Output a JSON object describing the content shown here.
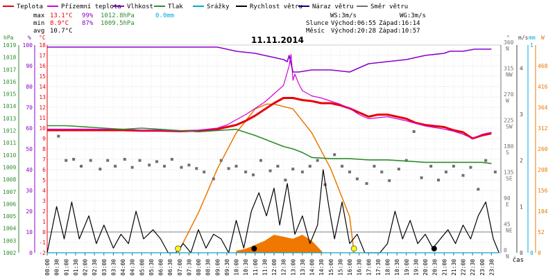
{
  "legend": [
    {
      "label": "Teplota",
      "color": "#e8000b"
    },
    {
      "label": "Přízemní teplota",
      "color": "#d400d4"
    },
    {
      "label": "Vlhkost",
      "color": "#8a00c8"
    },
    {
      "label": "Tlak",
      "color": "#2e8b2e"
    },
    {
      "label": "Srážky",
      "color": "#00a8d8"
    },
    {
      "label": "Rychlost větru",
      "color": "#000000"
    },
    {
      "label": "Náraz větru",
      "color": "#000080"
    },
    {
      "label": "Směr větru",
      "color": "#707070"
    }
  ],
  "stats": {
    "max": {
      "label": "max",
      "temp": "13.1°C",
      "hum": "99%",
      "press": "1012.8hPa",
      "rain": "0.0mm"
    },
    "min": {
      "label": "min",
      "temp": "8.9°C",
      "hum": "87%",
      "press": "1009.5hPa"
    },
    "avg": {
      "label": "avg",
      "temp": "10.7°C"
    }
  },
  "wind_info": {
    "ws": "WS:3m/s",
    "wg": "WG:3m/s"
  },
  "sun_info": {
    "label": "Slunce",
    "rise": "Východ:06:55",
    "set": "Západ:16:14"
  },
  "moon_info": {
    "label": "Měsíc",
    "rise": "Východ:20:28",
    "set": "Západ:10:57"
  },
  "chart_data": {
    "type": "line",
    "title": "11.11.2014",
    "x_axis_label": "čas",
    "x_ticks": [
      "00:00",
      "00:30",
      "01:00",
      "01:30",
      "02:00",
      "02:30",
      "03:00",
      "03:30",
      "04:00",
      "04:30",
      "05:00",
      "05:30",
      "06:00",
      "06:30",
      "07:00",
      "07:30",
      "08:00",
      "08:30",
      "09:00",
      "09:30",
      "10:00",
      "10:30",
      "11:00",
      "11:30",
      "12:00",
      "12:30",
      "13:00",
      "13:30",
      "14:00",
      "14:30",
      "15:00",
      "15:30",
      "16:00",
      "16:30",
      "17:00",
      "17:30",
      "18:00",
      "18:30",
      "19:00",
      "19:30",
      "20:00",
      "20:30",
      "21:00",
      "21:30",
      "22:00",
      "22:30",
      "23:00",
      "23:30"
    ],
    "axes": {
      "hPa": {
        "unit": "hPa",
        "ticks": [
          1002,
          1003,
          1004,
          1005,
          1006,
          1007,
          1008,
          1009,
          1010,
          1011,
          1012,
          1013,
          1014,
          1015,
          1016,
          1017,
          1018,
          1019
        ],
        "color": "#2e8b2e"
      },
      "percent": {
        "unit": "%",
        "ticks": [
          0,
          10,
          20,
          30,
          40,
          50,
          60,
          70,
          80,
          90,
          100
        ],
        "color": "#8a00c8"
      },
      "celsius": {
        "unit": "°C",
        "ticks": [
          -2,
          -1,
          0,
          1,
          2,
          3,
          4,
          5,
          6,
          7,
          8,
          9,
          10,
          11,
          12,
          13,
          14,
          15,
          16,
          17,
          18
        ],
        "color": "#e8000b"
      },
      "direction": {
        "unit": "°",
        "ticks": [
          {
            "deg": "0",
            "dir": "N"
          },
          {
            "deg": "45",
            "dir": "NE"
          },
          {
            "deg": "90",
            "dir": "E"
          },
          {
            "deg": "135",
            "dir": "SE"
          },
          {
            "deg": "180",
            "dir": "S"
          },
          {
            "deg": "225",
            "dir": "SW"
          },
          {
            "deg": "270",
            "dir": "W"
          },
          {
            "deg": "315",
            "dir": "NW"
          },
          {
            "deg": "360",
            "dir": "N"
          }
        ],
        "color": "#707070"
      },
      "ms": {
        "unit": "m/s",
        "ticks": [
          0,
          1,
          2,
          3,
          4
        ],
        "color": "#404040"
      },
      "mm": {
        "unit": "mm",
        "ticks": [
          0,
          1
        ],
        "color": "#00a8d8"
      },
      "wm2": {
        "unit": "W",
        "ticks": [
          0,
          52,
          104,
          156,
          208,
          260,
          312,
          364,
          416,
          468
        ],
        "color": "#e87800"
      }
    },
    "series": [
      {
        "name": "Teplota",
        "unit": "°C",
        "color": "#e8000b",
        "t": [
          0,
          0.5,
          1,
          2,
          3,
          4,
          5,
          6,
          7,
          8,
          9,
          9.5,
          10,
          10.5,
          11,
          11.5,
          12,
          12.5,
          13,
          13.5,
          14,
          14.5,
          15,
          15.5,
          16,
          16.5,
          17,
          17.5,
          18,
          18.5,
          19,
          19.5,
          20,
          20.5,
          21,
          21.5,
          22,
          22.5,
          23,
          23.5
        ],
        "v": [
          9.8,
          9.8,
          9.8,
          9.8,
          9.8,
          9.8,
          9.75,
          9.75,
          9.7,
          9.75,
          9.9,
          10.1,
          10.3,
          10.7,
          11.2,
          11.8,
          12.4,
          12.9,
          12.9,
          12.7,
          12.6,
          12.4,
          12.4,
          12.2,
          11.9,
          11.5,
          11.1,
          11.3,
          11.3,
          11.1,
          10.9,
          10.5,
          10.3,
          10.2,
          10.1,
          9.8,
          9.6,
          9.0,
          9.3,
          9.5
        ]
      },
      {
        "name": "Přízemní teplota",
        "unit": "°C",
        "color": "#d400d4",
        "t": [
          0,
          1,
          2,
          3,
          4,
          5,
          6,
          7,
          8,
          9,
          9.5,
          10,
          10.5,
          11,
          11.5,
          12,
          12.5,
          12.8,
          12.9,
          13.0,
          13.1,
          13.3,
          13.5,
          14,
          14.5,
          15,
          15.5,
          16,
          16.5,
          17,
          17.5,
          18,
          18.5,
          19,
          20,
          21,
          21.5,
          22,
          22.5,
          23,
          23.5
        ],
        "v": [
          9.9,
          9.9,
          9.9,
          9.9,
          9.9,
          9.8,
          9.8,
          9.7,
          9.8,
          10.0,
          10.3,
          10.8,
          11.3,
          11.9,
          12.5,
          13.3,
          14.1,
          16.0,
          17.1,
          14.6,
          15.2,
          14.3,
          13.6,
          13.1,
          12.9,
          12.6,
          12.3,
          11.9,
          11.3,
          10.9,
          11.0,
          11.1,
          10.9,
          10.7,
          10.2,
          9.9,
          9.7,
          9.4,
          9.0,
          9.4,
          9.6
        ]
      },
      {
        "name": "Vlhkost",
        "unit": "%",
        "color": "#8a00c8",
        "t": [
          0,
          9,
          10,
          11,
          11.5,
          12,
          12.5,
          12.7,
          12.8,
          12.9,
          13.0,
          13.3,
          14,
          15,
          16,
          16.5,
          17,
          18,
          19,
          20,
          21,
          21.3,
          22,
          22.6,
          23,
          23.5
        ],
        "v": [
          99,
          99,
          97,
          96,
          95,
          94,
          93,
          92,
          95,
          91,
          87,
          87,
          88,
          88,
          87,
          89,
          91,
          92,
          93,
          95,
          96,
          97,
          97,
          98,
          98,
          98
        ],
        "note": "values above are estimated from the purple line (left % axis)"
      },
      {
        "name": "Tlak",
        "unit": "hPa",
        "color": "#2e8b2e",
        "t": [
          0,
          1,
          2,
          3,
          4,
          5,
          6,
          7,
          8,
          9,
          10,
          11,
          12,
          12.5,
          13,
          13.5,
          14,
          15,
          16,
          17,
          18,
          19,
          20,
          21,
          22,
          23,
          23.5
        ],
        "v": [
          1012.4,
          1012.4,
          1012.3,
          1012.2,
          1012.1,
          1012.2,
          1012.1,
          1012.0,
          1011.9,
          1012.0,
          1012.1,
          1011.6,
          1011.0,
          1010.7,
          1010.5,
          1010.2,
          1009.8,
          1009.7,
          1009.7,
          1009.6,
          1009.6,
          1009.5,
          1009.4,
          1009.4,
          1009.4,
          1009.4,
          1009.3
        ]
      },
      {
        "name": "Rychlost větru",
        "unit": "m/s",
        "color": "#000000",
        "t": [
          0,
          0.5,
          0.9,
          1.3,
          1.7,
          2.2,
          2.6,
          3.0,
          3.5,
          3.9,
          4.3,
          4.7,
          5.1,
          5.6,
          6.0,
          6.4,
          6.8,
          7.2,
          7.6,
          8.0,
          8.4,
          8.8,
          9.2,
          9.6,
          10.0,
          10.4,
          10.8,
          11.2,
          11.6,
          12.0,
          12.3,
          12.7,
          13.1,
          13.5,
          13.9,
          14.3,
          14.6,
          14.9,
          15.2,
          15.6,
          16.0,
          16.4,
          16.8,
          17.2,
          17.6,
          18.0,
          18.4,
          18.8,
          19.2,
          19.6,
          20.0,
          20.4,
          20.8,
          21.2,
          21.6,
          22.0,
          22.4,
          22.8,
          23.2,
          23.6,
          23.9
        ],
        "v": [
          0.0,
          1.0,
          0.3,
          1.1,
          0.3,
          0.8,
          0.2,
          0.6,
          0.1,
          0.4,
          0.2,
          0.9,
          0.3,
          0.5,
          0.3,
          0.0,
          0.0,
          0.2,
          0.0,
          0.5,
          0.1,
          0.4,
          0.3,
          0.0,
          0.7,
          0.1,
          0.9,
          1.3,
          0.8,
          1.4,
          0.6,
          1.5,
          0.4,
          0.8,
          0.2,
          0.6,
          1.8,
          1.0,
          0.3,
          1.1,
          0.2,
          0.4,
          0.0,
          0.0,
          0.0,
          0.2,
          0.9,
          0.3,
          0.7,
          0.2,
          0.4,
          0.1,
          0.3,
          0.5,
          0.2,
          0.6,
          0.3,
          0.8,
          1.1,
          0.3,
          0.0
        ]
      },
      {
        "name": "Srážky",
        "unit": "mm",
        "color": "#00a8d8",
        "t": [
          0,
          23.9
        ],
        "v": [
          0,
          0
        ]
      }
    ],
    "wind_direction_points": {
      "unit": "°",
      "t": [
        0.6,
        1,
        1.4,
        1.8,
        2.3,
        2.8,
        3.2,
        3.6,
        4.1,
        4.5,
        4.9,
        5.4,
        5.8,
        6.2,
        6.6,
        7.1,
        7.5,
        7.9,
        8.3,
        8.8,
        9.2,
        9.6,
        10.0,
        10.5,
        10.9,
        11.3,
        11.8,
        12.2,
        12.6,
        13.0,
        13.5,
        13.9,
        14.3,
        14.7,
        15.2,
        15.6,
        16.0,
        16.4,
        16.9,
        17.3,
        17.7,
        18.1,
        18.6,
        19.0,
        19.4,
        19.8,
        20.3,
        20.7,
        21.1,
        21.5,
        22.0,
        22.4,
        22.8,
        23.2,
        23.7
      ],
      "v": [
        202,
        160,
        162,
        150,
        160,
        145,
        160,
        150,
        162,
        148,
        160,
        152,
        158,
        150,
        162,
        148,
        152,
        146,
        140,
        128,
        160,
        146,
        150,
        140,
        135,
        160,
        142,
        150,
        126,
        145,
        140,
        150,
        160,
        118,
        170,
        150,
        140,
        128,
        120,
        150,
        140,
        125,
        145,
        160,
        210,
        130,
        150,
        126,
        140,
        150,
        134,
        148,
        110,
        160,
        140
      ],
      "color": "#707070"
    },
    "solar_radiation": {
      "unit": "W",
      "t": [
        6.92,
        8,
        9,
        10,
        11,
        11.6,
        12,
        13,
        14,
        15,
        16,
        16.23
      ],
      "v": [
        0,
        100,
        210,
        300,
        360,
        372,
        372,
        360,
        300,
        210,
        90,
        0
      ],
      "color": "#e87800"
    },
    "solar_fill": {
      "unit": "W",
      "t": [
        10,
        10.5,
        11,
        11.5,
        12,
        12.5,
        13,
        13.5,
        14,
        14.3,
        14.6
      ],
      "v": [
        5,
        10,
        20,
        30,
        45,
        40,
        35,
        45,
        30,
        15,
        0
      ],
      "color": "#f07800"
    },
    "sun_markers": [
      {
        "t": 6.92,
        "color": "#ffff00"
      },
      {
        "t": 16.23,
        "color": "#ffff00"
      }
    ],
    "moon_markers": [
      {
        "t": 10.95,
        "color": "#000000"
      },
      {
        "t": 20.47,
        "color": "#000000"
      }
    ]
  }
}
